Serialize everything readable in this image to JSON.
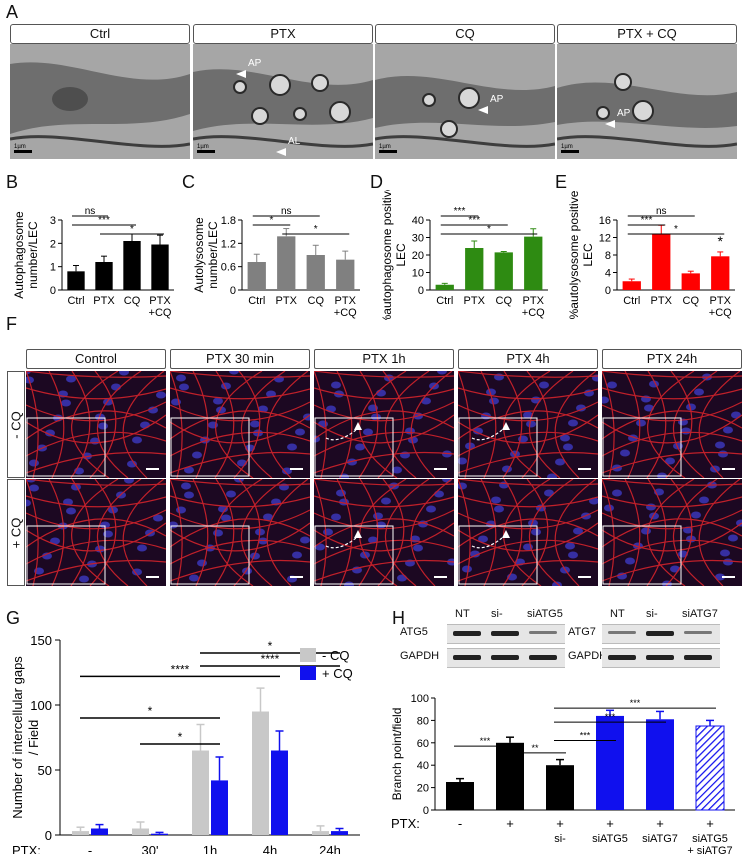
{
  "panels": {
    "A": {
      "label": "A",
      "headers": [
        "Ctrl",
        "PTX",
        "CQ",
        "PTX + CQ"
      ],
      "scalebar": "1µm",
      "annotations": [
        "AP",
        "AL",
        "AP",
        "AP"
      ]
    },
    "B": {
      "label": "B"
    },
    "C": {
      "label": "C"
    },
    "D": {
      "label": "D"
    },
    "E": {
      "label": "E"
    },
    "F": {
      "label": "F",
      "col_headers": [
        "Control",
        "PTX 30 min",
        "PTX 1h",
        "PTX 4h",
        "PTX 24h"
      ],
      "row_labels": [
        "- CQ",
        "+ CQ"
      ]
    },
    "G": {
      "label": "G"
    },
    "H": {
      "label": "H",
      "blot_left": {
        "headers": [
          "NT",
          "si-",
          "siATG5"
        ],
        "rows": [
          "ATG5",
          "GAPDH"
        ]
      },
      "blot_right": {
        "headers": [
          "NT",
          "si-",
          "siATG7"
        ],
        "rows": [
          "ATG7",
          "GAPDH"
        ]
      }
    }
  },
  "chart_data": [
    {
      "panel": "B",
      "type": "bar",
      "categories": [
        "Ctrl",
        "PTX",
        "CQ",
        "PTX +CQ"
      ],
      "values": [
        0.8,
        1.2,
        2.1,
        1.95
      ],
      "errors": [
        0.25,
        0.25,
        0.3,
        0.4
      ],
      "ylabel": "Autophagosome number/LEC",
      "ylim": [
        0,
        3
      ],
      "yticks": [
        0,
        1,
        2,
        3
      ],
      "color": "#000000",
      "sig": [
        {
          "text": "ns",
          "from": 0,
          "to": 1
        },
        {
          "text": "***",
          "from": 0,
          "to": 2
        },
        {
          "text": "*",
          "from": 1,
          "to": 3
        }
      ]
    },
    {
      "panel": "C",
      "type": "bar",
      "categories": [
        "Ctrl",
        "PTX",
        "CQ",
        "PTX +CQ"
      ],
      "values": [
        0.72,
        1.38,
        0.9,
        0.78
      ],
      "errors": [
        0.2,
        0.2,
        0.25,
        0.22
      ],
      "ylabel": "Autolysosome number/LEC",
      "ylim": [
        0,
        1.8
      ],
      "yticks": [
        0,
        0.6,
        1.2,
        1.8
      ],
      "color": "#808080",
      "sig": [
        {
          "text": "ns",
          "from": 0,
          "to": 2
        },
        {
          "text": "*",
          "from": 0,
          "to": 1
        },
        {
          "text": "*",
          "from": 1,
          "to": 3
        }
      ]
    },
    {
      "panel": "D",
      "type": "bar",
      "categories": [
        "Ctrl",
        "PTX",
        "CQ",
        "PTX +CQ"
      ],
      "values": [
        3,
        24,
        21.5,
        30.5
      ],
      "errors": [
        0.8,
        4,
        0.5,
        4.5
      ],
      "ylabel": "%autophagosome positive LEC",
      "ylim": [
        0,
        40
      ],
      "yticks": [
        0,
        10,
        20,
        30,
        40
      ],
      "color": "#2e8b12",
      "sig": [
        {
          "text": "***",
          "from": 0,
          "to": 1
        },
        {
          "text": "***",
          "from": 0,
          "to": 2
        },
        {
          "text": "*",
          "from": 0,
          "to": 3
        }
      ]
    },
    {
      "panel": "E",
      "type": "bar",
      "categories": [
        "Ctrl",
        "PTX",
        "CQ",
        "PTX +CQ"
      ],
      "values": [
        2,
        12.8,
        3.8,
        7.7
      ],
      "errors": [
        0.5,
        2,
        0.5,
        1
      ],
      "ylabel": "%autolysosome positive LEC",
      "ylim": [
        0,
        16
      ],
      "yticks": [
        0,
        4,
        8,
        12,
        16
      ],
      "color": "#ff0000",
      "sig": [
        {
          "text": "ns",
          "from": 0,
          "to": 2
        },
        {
          "text": "***",
          "from": 0,
          "to": 1
        },
        {
          "text": "*",
          "from": 0,
          "to": 3
        }
      ],
      "star_over": {
        "index": 3,
        "text": "*"
      }
    },
    {
      "panel": "G",
      "type": "bar",
      "ylabel": "Number of intercellular gaps / Field",
      "xprefix": "PTX:",
      "categories": [
        "-",
        "30'",
        "1h",
        "4h",
        "24h"
      ],
      "ylim": [
        0,
        150
      ],
      "yticks": [
        0,
        50,
        100,
        150
      ],
      "series": [
        {
          "name": "- CQ",
          "color": "#c8c8c8",
          "values": [
            3,
            5,
            65,
            95,
            3
          ],
          "errors": [
            3,
            5,
            20,
            18,
            4
          ]
        },
        {
          "name": "+ CQ",
          "color": "#1010ee",
          "values": [
            5,
            1,
            42,
            65,
            3
          ],
          "errors": [
            3,
            1,
            18,
            15,
            2
          ]
        }
      ],
      "sig": [
        {
          "text": "*",
          "x1": 0,
          "x2": 2,
          "y": 90
        },
        {
          "text": "*",
          "x1": 1,
          "x2": 2,
          "y": 70
        },
        {
          "text": "****",
          "x1": 0,
          "x2": 3,
          "y": 122
        },
        {
          "text": "*",
          "x1": 2,
          "x2": 4,
          "y": 140
        },
        {
          "text": "****",
          "x1": 2,
          "x2": 4,
          "y": 130
        }
      ],
      "legend": "top-right"
    },
    {
      "panel": "H",
      "type": "bar",
      "ylabel": "Branch point/field",
      "xprefix": "PTX:",
      "ptx": [
        "-",
        "+",
        "+",
        "+",
        "+",
        "+"
      ],
      "categories": [
        "",
        "",
        "si-",
        "siATG5",
        "siATG7",
        "siATG5 + siATG7"
      ],
      "values": [
        25,
        60,
        40,
        84,
        81,
        75
      ],
      "errors": [
        3,
        5,
        5,
        5,
        7,
        5
      ],
      "colors": [
        "#000000",
        "#000000",
        "#000000",
        "#1010ee",
        "#1010ee",
        "hatched"
      ],
      "ylim": [
        0,
        100
      ],
      "yticks": [
        0,
        20,
        40,
        60,
        80,
        100
      ],
      "sig": [
        {
          "text": "***",
          "from": 0,
          "to": 1
        },
        {
          "text": "**",
          "from": 1,
          "to": 2
        },
        {
          "text": "***",
          "from": 2,
          "to": 3
        },
        {
          "text": "***",
          "from": 2,
          "to": 4
        },
        {
          "text": "***",
          "from": 2,
          "to": 5
        }
      ]
    }
  ]
}
